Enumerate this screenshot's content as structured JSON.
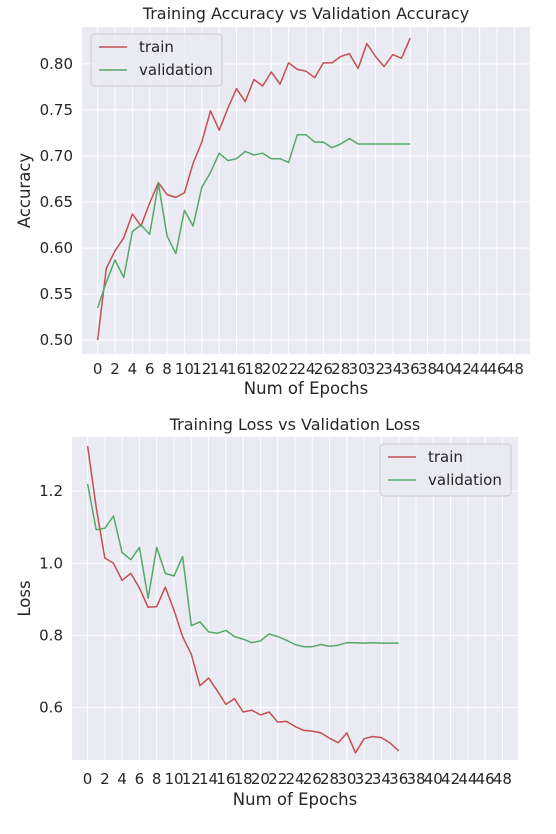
{
  "chart_data": [
    {
      "type": "line",
      "title": "Training Accuracy vs Validation Accuracy",
      "xlabel": "Num of Epochs",
      "ylabel": "Accuracy",
      "xlim": [
        -1.8,
        49.8
      ],
      "ylim": [
        0.485,
        0.84
      ],
      "x_ticks": [
        0,
        2,
        4,
        6,
        8,
        10,
        12,
        14,
        16,
        18,
        20,
        22,
        24,
        26,
        28,
        30,
        32,
        34,
        36,
        38,
        40,
        42,
        44,
        46,
        48
      ],
      "x_tick_labels": [
        "0",
        "2",
        "4",
        "6",
        "8",
        "10",
        "12",
        "14",
        "16",
        "18",
        "20",
        "22",
        "24",
        "26",
        "28",
        "30",
        "32",
        "34",
        "36",
        "38",
        "40",
        "42",
        "44",
        "46",
        "48"
      ],
      "y_ticks": [
        0.5,
        0.55,
        0.6,
        0.65,
        0.7,
        0.75,
        0.8
      ],
      "y_tick_labels": [
        "0.50",
        "0.55",
        "0.60",
        "0.65",
        "0.70",
        "0.75",
        "0.80"
      ],
      "grid": true,
      "legend": "top-left",
      "x": [
        0,
        1,
        2,
        3,
        4,
        5,
        6,
        7,
        8,
        9,
        10,
        11,
        12,
        13,
        14,
        15,
        16,
        17,
        18,
        19,
        20,
        21,
        22,
        23,
        24,
        25,
        26,
        27,
        28,
        29,
        30,
        31,
        32,
        33,
        34,
        35,
        36
      ],
      "series": [
        {
          "name": "train",
          "color": "#c44e52",
          "values": [
            0.5,
            0.578,
            0.597,
            0.611,
            0.637,
            0.624,
            0.649,
            0.671,
            0.658,
            0.655,
            0.66,
            0.692,
            0.715,
            0.749,
            0.728,
            0.752,
            0.773,
            0.759,
            0.783,
            0.776,
            0.791,
            0.778,
            0.801,
            0.794,
            0.792,
            0.785,
            0.801,
            0.801,
            0.808,
            0.811,
            0.795,
            0.822,
            0.808,
            0.797,
            0.81,
            0.806,
            0.828
          ]
        },
        {
          "name": "validation",
          "color": "#55a868",
          "values": [
            0.535,
            0.563,
            0.587,
            0.568,
            0.618,
            0.625,
            0.615,
            0.67,
            0.613,
            0.594,
            0.641,
            0.624,
            0.666,
            0.682,
            0.703,
            0.695,
            0.697,
            0.705,
            0.701,
            0.703,
            0.697,
            0.697,
            0.693,
            0.723,
            0.723,
            0.715,
            0.715,
            0.709,
            0.713,
            0.719,
            0.713,
            0.713,
            0.713,
            0.713,
            0.713,
            0.713,
            0.713
          ]
        }
      ]
    },
    {
      "type": "line",
      "title": "Training Loss vs Validation Loss",
      "xlabel": "Num of Epochs",
      "ylabel": "Loss",
      "xlim": [
        -1.8,
        49.8
      ],
      "ylim": [
        0.455,
        1.35
      ],
      "x_ticks": [
        0,
        2,
        4,
        6,
        8,
        10,
        12,
        14,
        16,
        18,
        20,
        22,
        24,
        26,
        28,
        30,
        32,
        34,
        36,
        38,
        40,
        42,
        44,
        46,
        48
      ],
      "x_tick_labels": [
        "0",
        "2",
        "4",
        "6",
        "8",
        "10",
        "12",
        "14",
        "16",
        "18",
        "20",
        "22",
        "24",
        "26",
        "28",
        "30",
        "32",
        "34",
        "36",
        "38",
        "40",
        "42",
        "44",
        "46",
        "48"
      ],
      "y_ticks": [
        0.6,
        0.8,
        1.0,
        1.2
      ],
      "y_tick_labels": [
        "0.6",
        "0.8",
        "1.0",
        "1.2"
      ],
      "grid": true,
      "legend": "top-right",
      "x": [
        0,
        1,
        2,
        3,
        4,
        5,
        6,
        7,
        8,
        9,
        10,
        11,
        12,
        13,
        14,
        15,
        16,
        17,
        18,
        19,
        20,
        21,
        22,
        23,
        24,
        25,
        26,
        27,
        28,
        29,
        30,
        31,
        32,
        33,
        34,
        35,
        36
      ],
      "series": [
        {
          "name": "train",
          "color": "#c44e52",
          "values": [
            1.325,
            1.155,
            1.015,
            1.0,
            0.953,
            0.972,
            0.932,
            0.878,
            0.88,
            0.934,
            0.87,
            0.797,
            0.748,
            0.661,
            0.682,
            0.647,
            0.609,
            0.625,
            0.588,
            0.593,
            0.58,
            0.588,
            0.56,
            0.562,
            0.548,
            0.537,
            0.535,
            0.53,
            0.515,
            0.503,
            0.53,
            0.475,
            0.514,
            0.52,
            0.517,
            0.502,
            0.48
          ]
        },
        {
          "name": "validation",
          "color": "#55a868",
          "values": [
            1.22,
            1.093,
            1.097,
            1.131,
            1.03,
            1.01,
            1.044,
            0.903,
            1.044,
            0.972,
            0.965,
            1.019,
            0.827,
            0.838,
            0.81,
            0.806,
            0.814,
            0.797,
            0.79,
            0.78,
            0.785,
            0.804,
            0.797,
            0.787,
            0.775,
            0.769,
            0.769,
            0.775,
            0.77,
            0.773,
            0.78,
            0.78,
            0.779,
            0.78,
            0.779,
            0.779,
            0.779
          ]
        }
      ]
    }
  ]
}
